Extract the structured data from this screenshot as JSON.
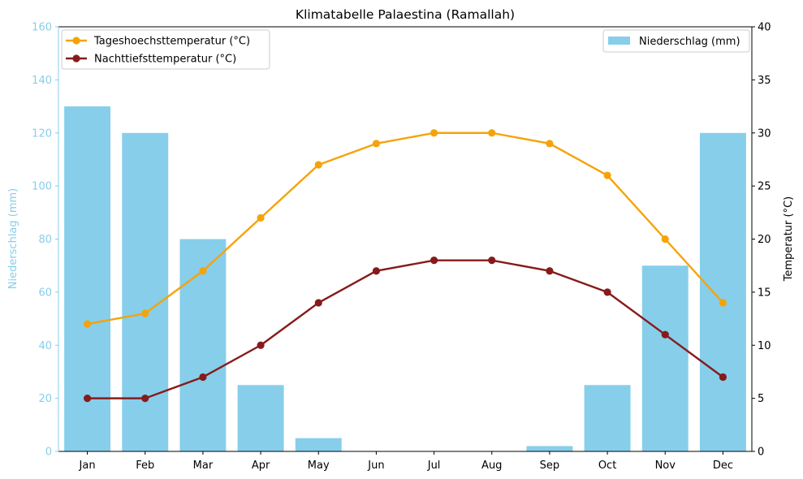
{
  "chart_data": {
    "type": "bar+line",
    "title": "Klimatabelle Palaestina (Ramallah)",
    "categories": [
      "Jan",
      "Feb",
      "Mar",
      "Apr",
      "May",
      "Jun",
      "Jul",
      "Aug",
      "Sep",
      "Oct",
      "Nov",
      "Dec"
    ],
    "precipitation": {
      "name": "Niederschlag (mm)",
      "values": [
        130,
        120,
        80,
        25,
        5,
        0,
        0,
        0,
        2,
        25,
        70,
        120
      ],
      "color": "#87ceeb"
    },
    "temperature_series": [
      {
        "name": "Tageshoechsttemperatur (°C)",
        "values": [
          12,
          13,
          17,
          22,
          27,
          29,
          30,
          30,
          29,
          26,
          20,
          14
        ],
        "color": "#f5a30a"
      },
      {
        "name": "Nachttiefsttemperatur (°C)",
        "values": [
          5,
          5,
          7,
          10,
          14,
          17,
          18,
          18,
          17,
          15,
          11,
          7
        ],
        "color": "#861b1b"
      }
    ],
    "ylabel_left": "Niederschlag (mm)",
    "ylabel_right": "Temperatur (°C)",
    "ylim_left": [
      0,
      160
    ],
    "ylim_right": [
      0,
      40
    ],
    "yticks_left": [
      0,
      20,
      40,
      60,
      80,
      100,
      120,
      140,
      160
    ],
    "yticks_right": [
      0,
      5,
      10,
      15,
      20,
      25,
      30,
      35,
      40
    ],
    "left_axis_color": "#87ceeb",
    "grid": false,
    "legend_lines_placement": "top-left",
    "legend_bars_placement": "top-right"
  }
}
